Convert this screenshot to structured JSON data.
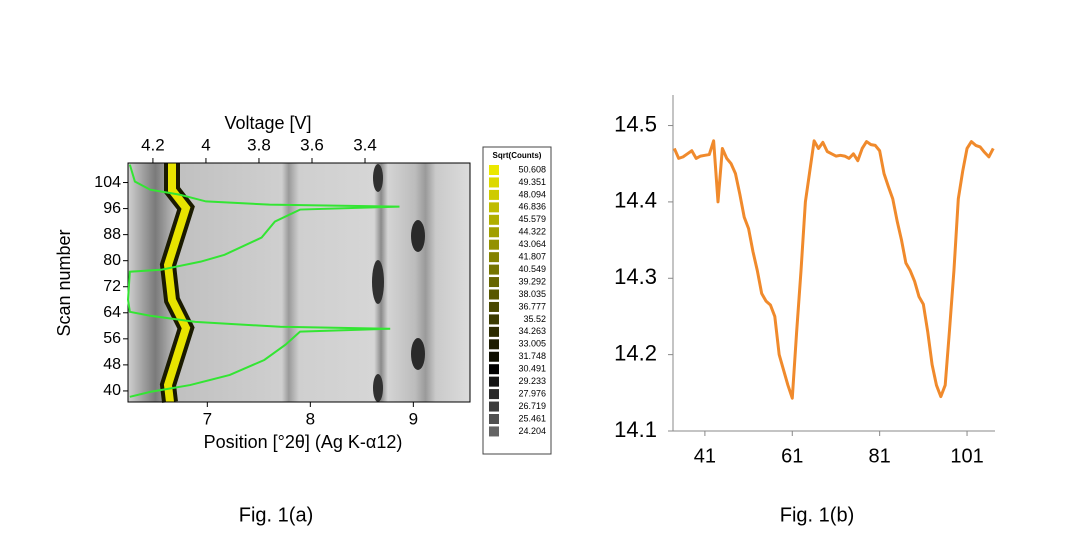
{
  "chart_data": [
    {
      "type": "heatmap",
      "x2label": "Voltage [V]",
      "xlabel": "Position [°2θ] (Ag K-α12)",
      "ylabel": "Scan number",
      "xlim": [
        6.23,
        9.55
      ],
      "xticks": [
        7,
        8,
        9
      ],
      "x2lim": [
        4.294,
        3.004
      ],
      "x2ticks": [
        4.2,
        4,
        3.8,
        3.6,
        3.4
      ],
      "ylim": [
        36.6,
        110
      ],
      "yticks": [
        40,
        48,
        56,
        64,
        72,
        80,
        88,
        96,
        104
      ],
      "series": [
        {
          "color": "#33e533",
          "axis": "x2",
          "x": [
            4.287,
            4.268,
            4.21,
            4.1,
            4.0,
            3.76,
            3.27,
            3.645,
            3.74,
            3.79,
            3.93,
            4.02,
            4.17,
            4.287,
            4.294,
            4.287,
            4.21,
            4.04,
            3.72,
            3.305,
            3.645,
            3.7,
            3.78,
            3.91,
            4.06,
            4.21,
            4.287
          ],
          "values": [
            109.5,
            104.3,
            101.8,
            100.3,
            98.2,
            97.2,
            96.6,
            95.7,
            92.0,
            87.1,
            81.8,
            79.7,
            77.2,
            76.6,
            68.0,
            64.3,
            63.1,
            61.2,
            59.7,
            59.1,
            58.2,
            54.2,
            49.5,
            44.9,
            41.8,
            39.7,
            38.2
          ]
        }
      ],
      "colorbar": {
        "title": "Sqrt(Counts)",
        "labels": [
          50.608,
          49.351,
          48.094,
          46.836,
          45.579,
          44.322,
          43.064,
          41.807,
          40.549,
          39.292,
          38.035,
          36.777,
          35.52,
          34.263,
          33.005,
          31.748,
          30.491,
          29.233,
          27.976,
          26.719,
          25.461,
          24.204
        ]
      },
      "caption": "Fig. 1(a)"
    },
    {
      "type": "line",
      "color": "#f08a2c",
      "xlim": [
        33.7,
        107.4
      ],
      "xticks": [
        41,
        61,
        81,
        101
      ],
      "ylim": [
        14.1,
        14.54
      ],
      "yticks": [
        14.1,
        14.2,
        14.3,
        14.4,
        14.5
      ],
      "x": [
        34,
        35,
        36,
        37,
        38,
        39,
        40,
        41,
        42,
        43,
        44,
        45,
        46,
        47,
        48,
        49,
        50,
        51,
        52,
        53,
        54,
        55,
        56,
        57,
        58,
        59,
        60,
        61,
        62,
        63,
        64,
        65,
        66,
        67,
        68,
        69,
        70,
        71,
        72,
        73,
        74,
        75,
        76,
        77,
        78,
        79,
        80,
        81,
        82,
        83,
        84,
        85,
        86,
        87,
        88,
        89,
        90,
        91,
        92,
        93,
        94,
        95,
        96,
        97,
        98,
        99,
        100,
        101,
        102,
        103,
        104,
        105,
        106,
        107
      ],
      "values": [
        14.47,
        14.457,
        14.459,
        14.463,
        14.467,
        14.457,
        14.46,
        14.461,
        14.462,
        14.48,
        14.4,
        14.47,
        14.457,
        14.45,
        14.437,
        14.41,
        14.38,
        14.365,
        14.335,
        14.31,
        14.28,
        14.27,
        14.265,
        14.25,
        14.2,
        14.18,
        14.16,
        14.143,
        14.23,
        14.31,
        14.4,
        14.44,
        14.48,
        14.47,
        14.478,
        14.466,
        14.463,
        14.46,
        14.461,
        14.46,
        14.457,
        14.463,
        14.454,
        14.47,
        14.479,
        14.475,
        14.474,
        14.467,
        14.437,
        14.42,
        14.404,
        14.375,
        14.35,
        14.32,
        14.31,
        14.296,
        14.276,
        14.266,
        14.23,
        14.187,
        14.16,
        14.145,
        14.16,
        14.233,
        14.31,
        14.404,
        14.44,
        14.47,
        14.479,
        14.474,
        14.472,
        14.465,
        14.459,
        14.47
      ],
      "caption": "Fig. 1(b)"
    }
  ]
}
